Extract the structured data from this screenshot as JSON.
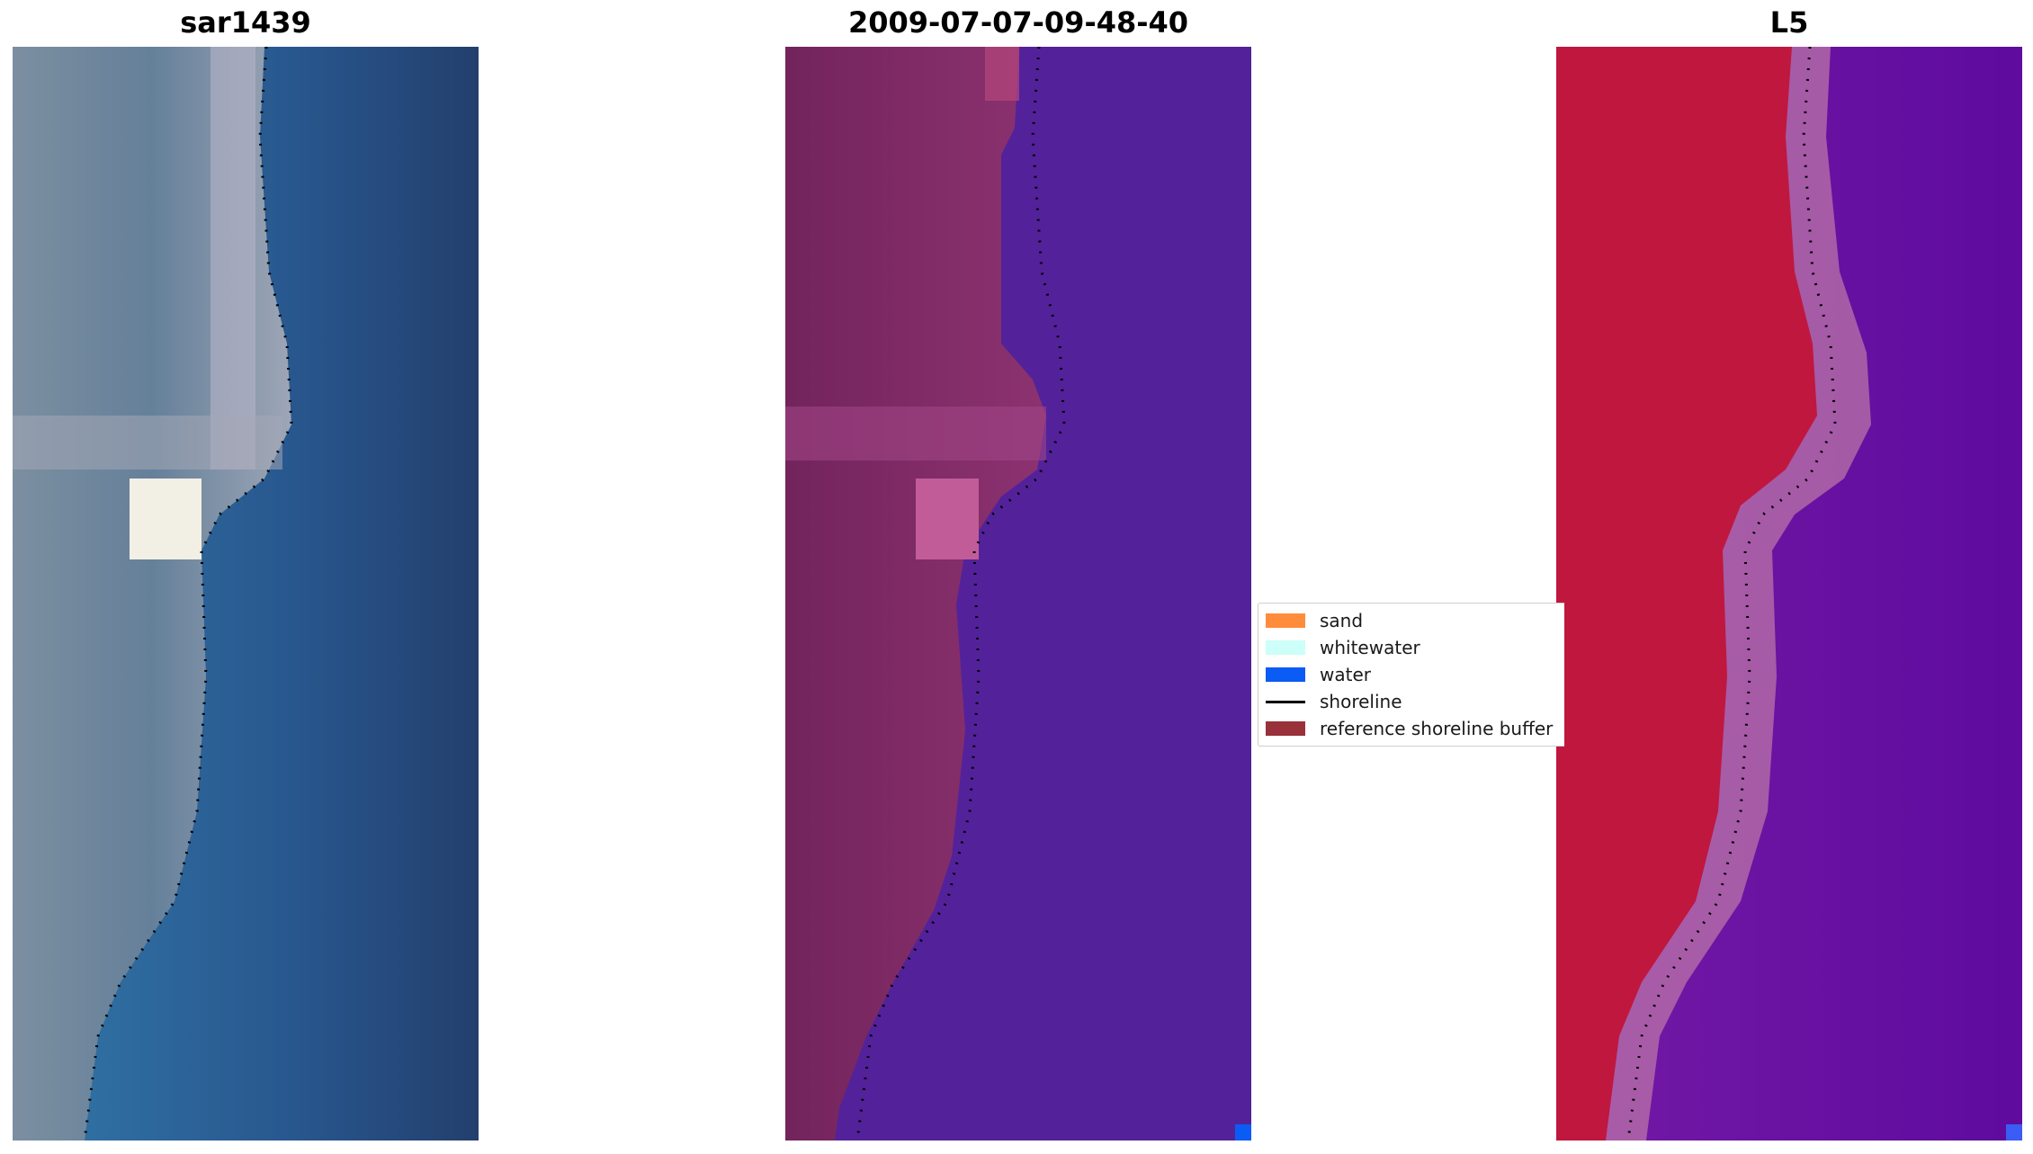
{
  "panels": [
    {
      "title": "sar1439"
    },
    {
      "title": "2009-07-07-09-48-40"
    },
    {
      "title": "L5"
    }
  ],
  "legend": [
    {
      "label": "sand",
      "kind": "patch",
      "color": "#ff8c3a"
    },
    {
      "label": "whitewater",
      "kind": "patch",
      "color": "#ccfff8"
    },
    {
      "label": "water",
      "kind": "patch",
      "color": "#0a5cf5"
    },
    {
      "label": "shoreline",
      "kind": "line",
      "color": "#000000"
    },
    {
      "label": "reference shoreline buffer",
      "kind": "patch",
      "color": "#98313a"
    }
  ],
  "colors": {
    "rgb_land": "#6d8496",
    "rgb_water": "#2b5c8f",
    "class_land": "#7a2a62",
    "class_water": "#53229a",
    "mndwi_land": "#c0173f",
    "mndwi_water": "#6f10a3",
    "shoreline": "#000000"
  }
}
